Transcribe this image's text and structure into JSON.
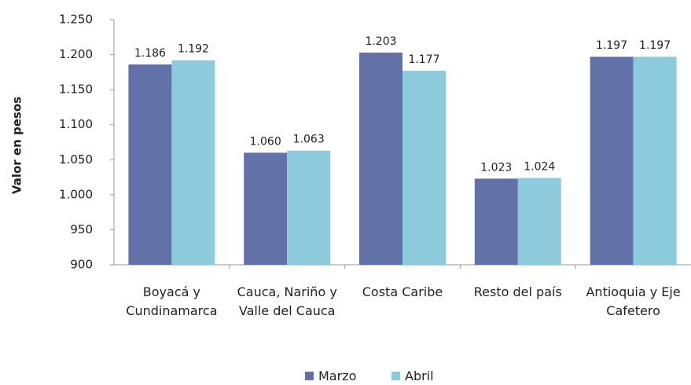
{
  "chart_data": {
    "type": "bar",
    "y_axis_label": "Valor en pesos",
    "categories": [
      "Boyacá y Cundinamarca",
      "Cauca, Nariño y Valle del Cauca",
      "Costa Caribe",
      "Resto del país",
      "Antioquia y Eje Cafetero"
    ],
    "series": [
      {
        "name": "Marzo",
        "color": "#6272a9",
        "values": [
          1186,
          1060,
          1203,
          1023,
          1197
        ],
        "value_labels": [
          "1.186",
          "1.060",
          "1.203",
          "1.023",
          "1.197"
        ]
      },
      {
        "name": "Abril",
        "color": "#8dcbdc",
        "values": [
          1192,
          1063,
          1177,
          1024,
          1197
        ],
        "value_labels": [
          "1.192",
          "1.063",
          "1.177",
          "1.024",
          "1.197"
        ]
      }
    ],
    "ylim": [
      900,
      1250
    ],
    "yticks": [
      900,
      950,
      {
        "value": 1000,
        "label": "1.000"
      },
      {
        "value": 1050,
        "label": "1.050"
      },
      {
        "value": 1100,
        "label": "1.100"
      },
      {
        "value": 1150,
        "label": "1.150"
      },
      {
        "value": 1200,
        "label": "1.200"
      },
      {
        "value": 1250,
        "label": "1.250"
      }
    ],
    "legend": "bottom",
    "grid": false
  }
}
